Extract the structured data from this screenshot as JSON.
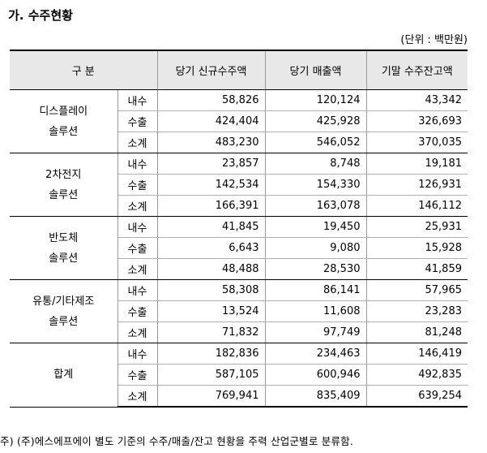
{
  "title": "가. 수주현황",
  "unit": "(단위 : 백만원)",
  "headers": {
    "category": "구    분",
    "col1": "당기 신규수주액",
    "col2": "당기 매출액",
    "col3": "기말 수주잔고액"
  },
  "groups": [
    {
      "name_line1": "디스플레이",
      "name_line2": "솔루션",
      "rows": [
        {
          "label": "내수",
          "v1": "58,826",
          "v2": "120,124",
          "v3": "43,342"
        },
        {
          "label": "수출",
          "v1": "424,404",
          "v2": "425,928",
          "v3": "326,693"
        },
        {
          "label": "소계",
          "v1": "483,230",
          "v2": "546,052",
          "v3": "370,035"
        }
      ]
    },
    {
      "name_line1": "2차전지",
      "name_line2": "솔루션",
      "rows": [
        {
          "label": "내수",
          "v1": "23,857",
          "v2": "8,748",
          "v3": "19,181"
        },
        {
          "label": "수출",
          "v1": "142,534",
          "v2": "154,330",
          "v3": "126,931"
        },
        {
          "label": "소계",
          "v1": "166,391",
          "v2": "163,078",
          "v3": "146,112"
        }
      ]
    },
    {
      "name_line1": "반도체",
      "name_line2": "솔루션",
      "rows": [
        {
          "label": "내수",
          "v1": "41,845",
          "v2": "19,450",
          "v3": "25,931"
        },
        {
          "label": "수출",
          "v1": "6,643",
          "v2": "9,080",
          "v3": "15,928"
        },
        {
          "label": "소계",
          "v1": "48,488",
          "v2": "28,530",
          "v3": "41,859"
        }
      ]
    },
    {
      "name_line1": "유통/기타제조",
      "name_line2": "솔루션",
      "rows": [
        {
          "label": "내수",
          "v1": "58,308",
          "v2": "86,141",
          "v3": "57,965"
        },
        {
          "label": "수출",
          "v1": "13,524",
          "v2": "11,608",
          "v3": "23,283"
        },
        {
          "label": "소계",
          "v1": "71,832",
          "v2": "97,749",
          "v3": "81,248"
        }
      ]
    },
    {
      "name_line1": "합계",
      "name_line2": "",
      "rows": [
        {
          "label": "내수",
          "v1": "182,836",
          "v2": "234,463",
          "v3": "146,419"
        },
        {
          "label": "수출",
          "v1": "587,105",
          "v2": "600,946",
          "v3": "492,835"
        },
        {
          "label": "소계",
          "v1": "769,941",
          "v2": "835,409",
          "v3": "639,254"
        }
      ]
    }
  ],
  "note": "주) (주)에스에프에이 별도 기준의 수주/매출/잔고 현황을 주력 산업군별로 분류함."
}
